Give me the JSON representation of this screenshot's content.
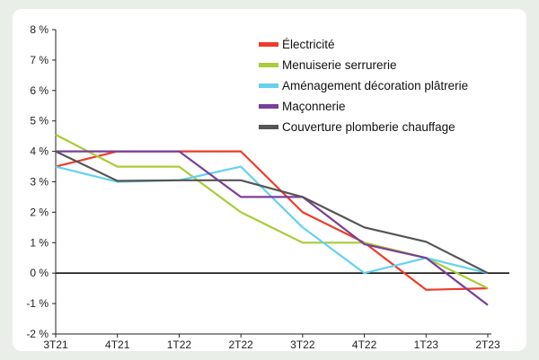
{
  "chart_data": {
    "type": "line",
    "categories": [
      "3T21",
      "4T21",
      "1T22",
      "2T22",
      "3T22",
      "4T22",
      "1T23",
      "2T23"
    ],
    "y_ticks": [
      "8 %",
      "7 %",
      "6 %",
      "5 %",
      "4 %",
      "3 %",
      "2 %",
      "1 %",
      "0 %",
      "-1 %",
      "-2 %"
    ],
    "ylim": [
      -2,
      8
    ],
    "zero_line": true,
    "grid": false,
    "legend_position": "top-right",
    "series": [
      {
        "name": "Électricité",
        "color": "#ee3b2b",
        "values": [
          3.5,
          4.0,
          4.0,
          4.0,
          2.0,
          1.0,
          -0.55,
          -0.5
        ]
      },
      {
        "name": "Menuiserie serrurerie",
        "color": "#a8cc3a",
        "values": [
          4.55,
          3.5,
          3.5,
          2.0,
          1.0,
          1.0,
          0.5,
          -0.5
        ]
      },
      {
        "name": "Aménagement décoration plâtrerie",
        "color": "#62d2ef",
        "values": [
          3.5,
          3.0,
          3.05,
          3.5,
          1.5,
          0.0,
          0.5,
          0.0
        ]
      },
      {
        "name": "Maçonnerie",
        "color": "#7a3f98",
        "values": [
          4.0,
          4.0,
          4.0,
          2.5,
          2.5,
          0.95,
          0.5,
          -1.05
        ]
      },
      {
        "name": "Couverture plomberie chauffage",
        "color": "#555555",
        "values": [
          4.0,
          3.03,
          3.05,
          3.05,
          2.5,
          1.5,
          1.03,
          0.0
        ]
      }
    ]
  }
}
